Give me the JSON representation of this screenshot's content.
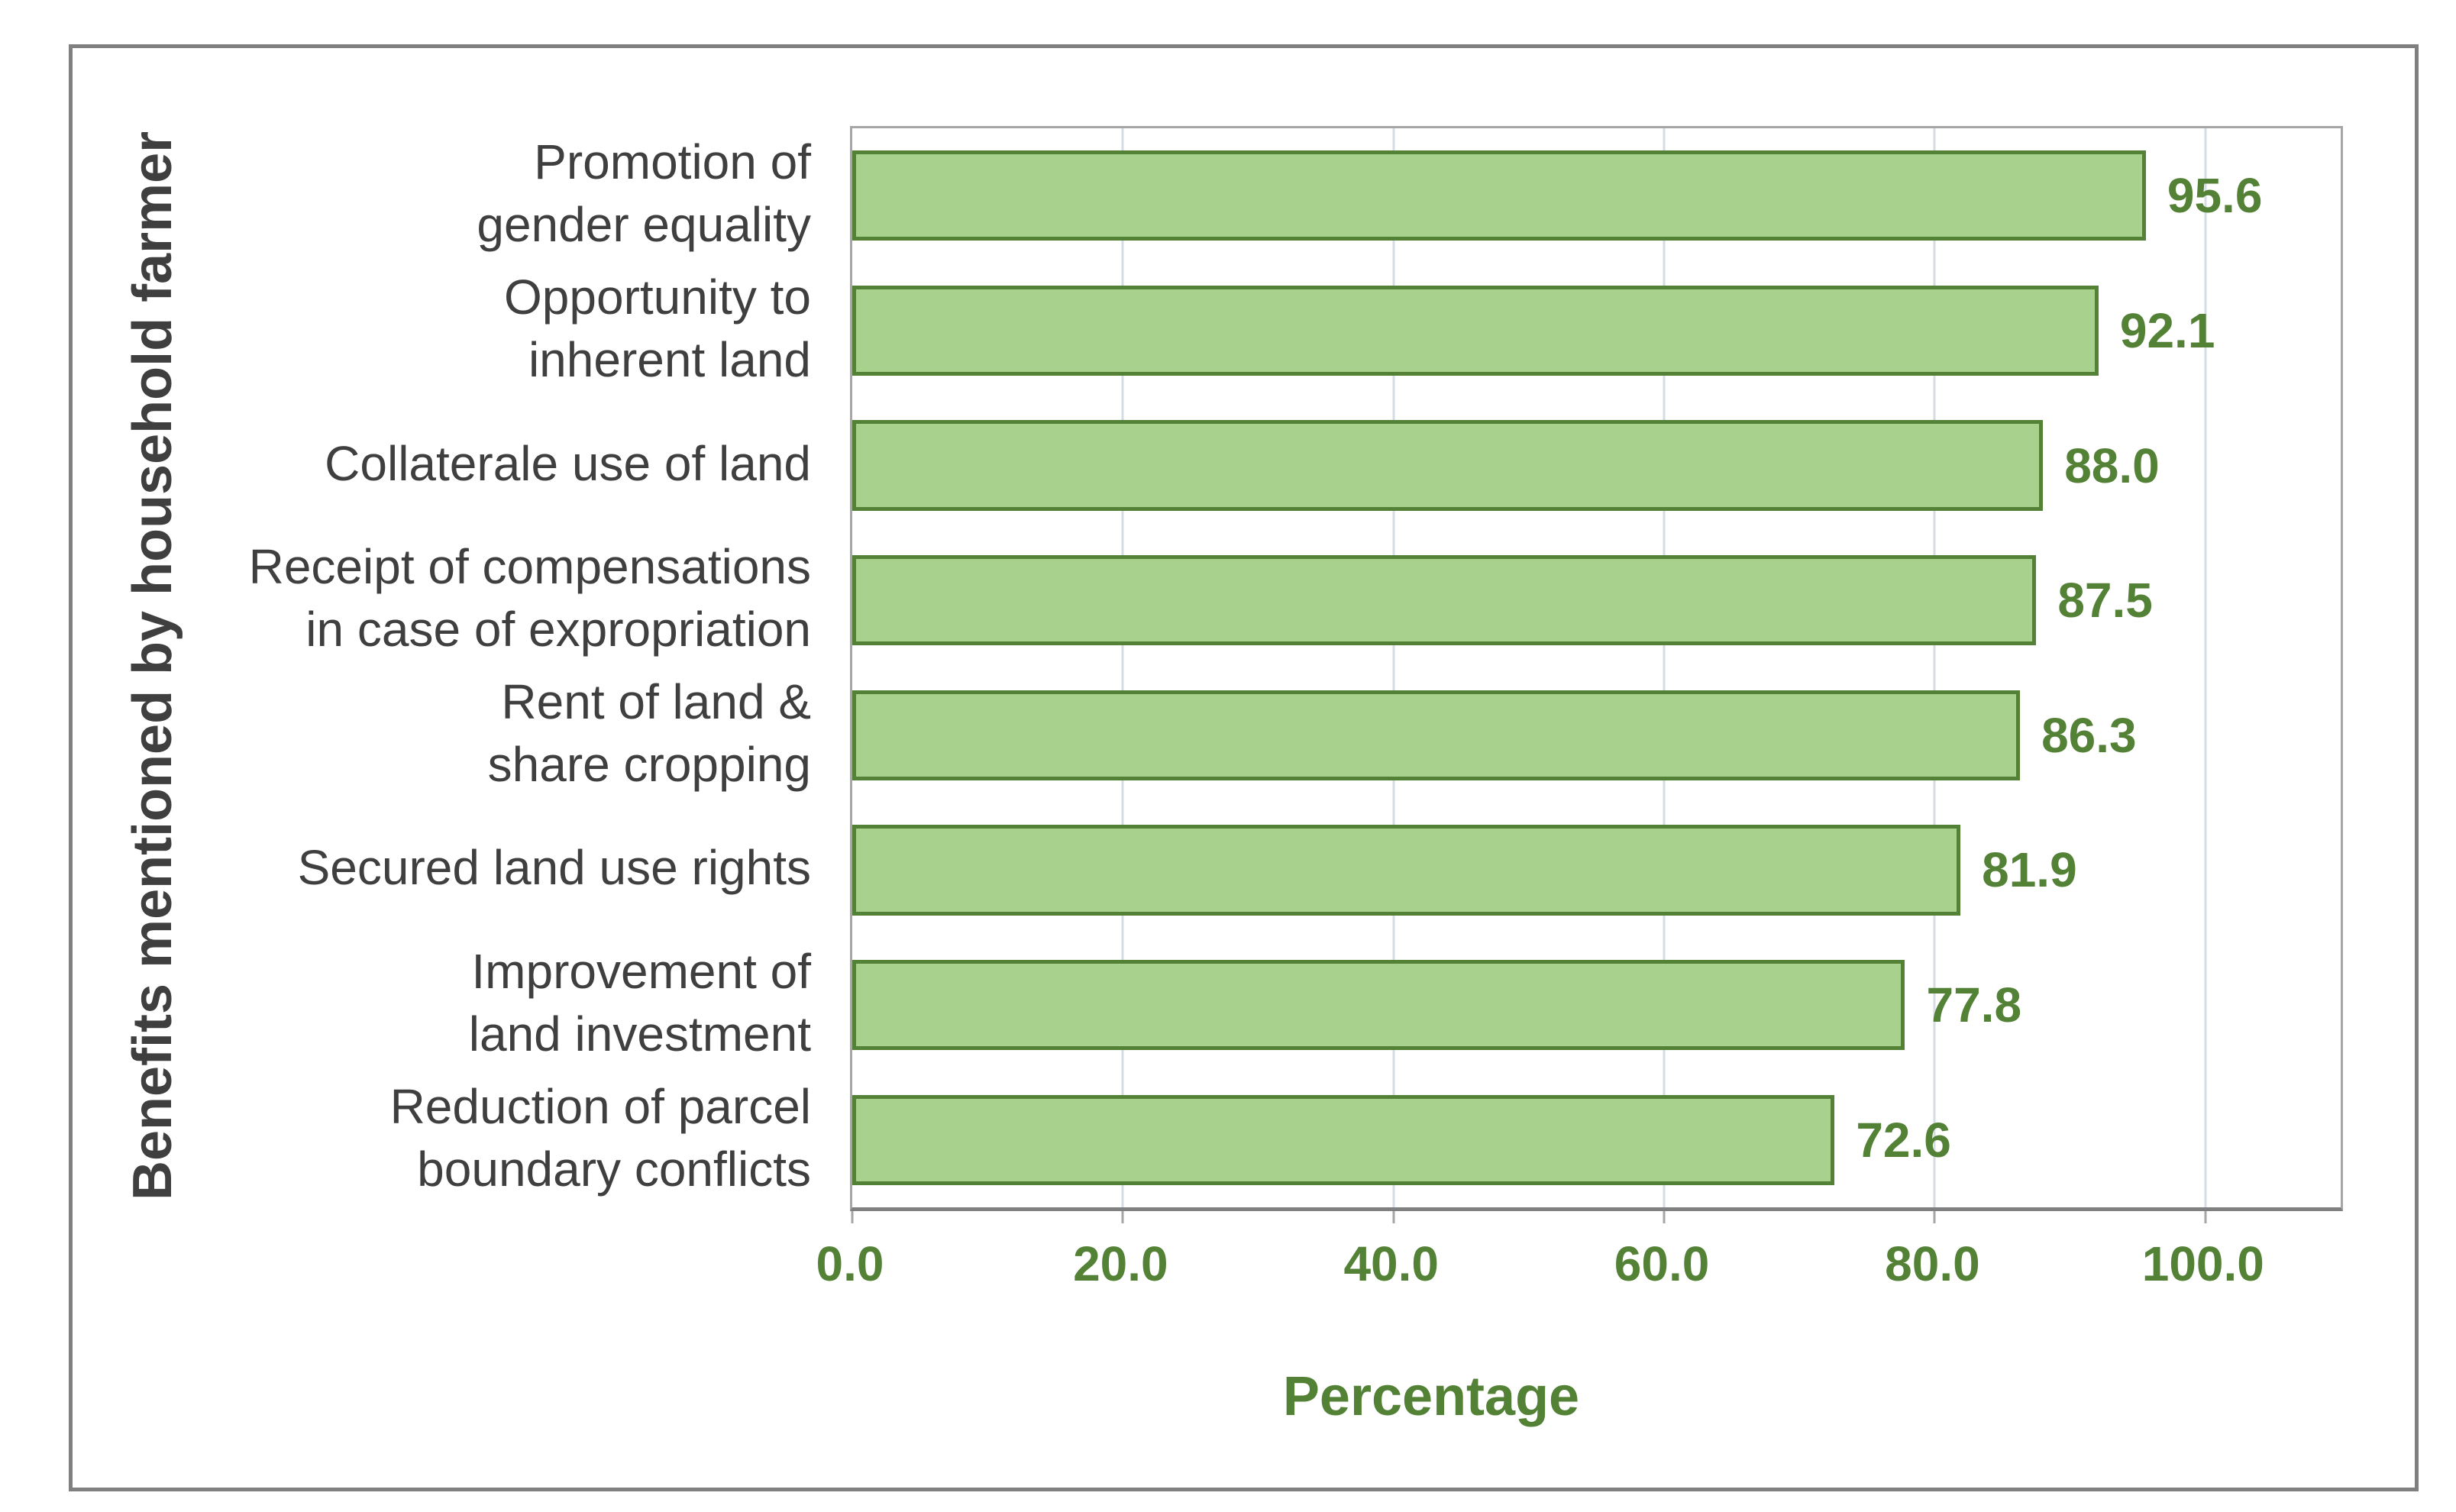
{
  "figure": {
    "background": "#FFFFFF",
    "border_color": "#808080"
  },
  "chart_data": {
    "type": "bar",
    "orientation": "horizontal",
    "title": "",
    "xlabel": "Percentage",
    "ylabel": "Benefits mentioned by household farmer",
    "categories": [
      "Promotion of\ngender equality",
      "Opportunity to\ninherent land",
      "Collaterale use of land",
      "Receipt of compensations\nin case of expropriation",
      "Rent of land &\nshare cropping",
      "Secured land use rights",
      "Improvement of\nland investment",
      "Reduction of parcel\nboundary conflicts"
    ],
    "values": [
      95.6,
      92.1,
      88.0,
      87.5,
      86.3,
      81.9,
      77.8,
      72.6
    ],
    "value_labels": [
      "95.6",
      "92.1",
      "88.0",
      "87.5",
      "86.3",
      "81.9",
      "77.8",
      "72.6"
    ],
    "xlim": [
      0,
      110
    ],
    "xticks": [
      0,
      20,
      40,
      60,
      80,
      100
    ],
    "xtick_labels": [
      "0.0",
      "20.0",
      "40.0",
      "60.0",
      "80.0",
      "100.0"
    ],
    "grid": true,
    "legend": false,
    "data_labels_position": "outside-end",
    "colors": {
      "bar_fill": "#A9D18E",
      "bar_border": "#538135",
      "green_text": "#538135",
      "gray_text": "#3F3F3F",
      "gridline": "#D6DCE4",
      "plot_border": "#A6A6A6",
      "axis_line": "#808080"
    }
  }
}
